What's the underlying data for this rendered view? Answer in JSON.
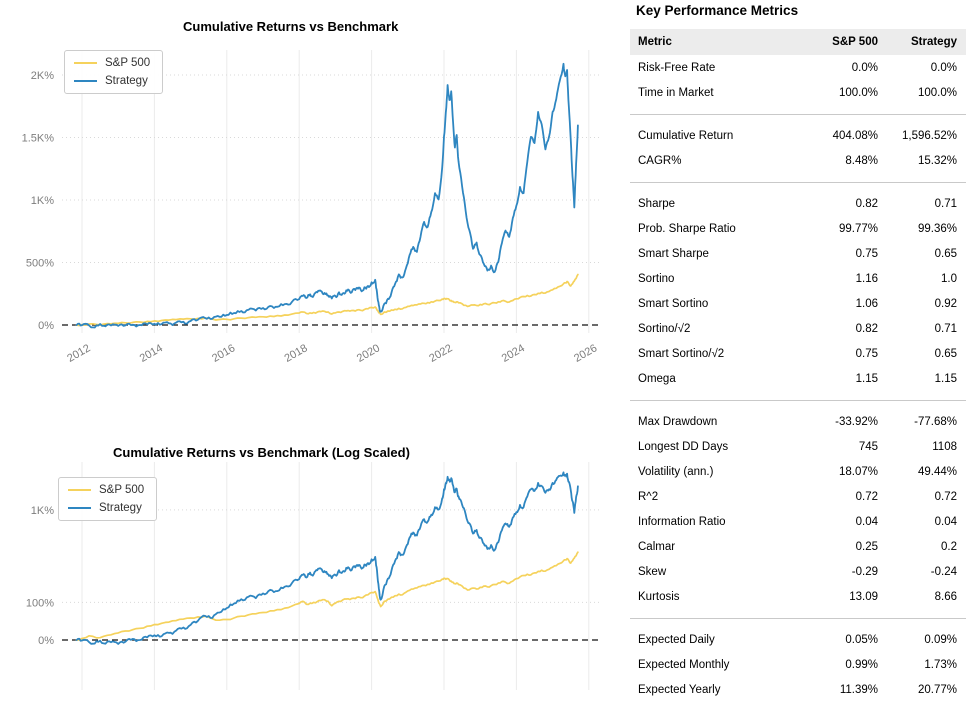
{
  "metrics_panel": {
    "title": "Key Performance Metrics",
    "columns": [
      "Metric",
      "S&P 500",
      "Strategy"
    ],
    "groups": [
      {
        "rows": [
          [
            "Risk-Free Rate",
            "0.0%",
            "0.0%"
          ],
          [
            "Time in Market",
            "100.0%",
            "100.0%"
          ]
        ]
      },
      {
        "rows": [
          [
            "Cumulative Return",
            "404.08%",
            "1,596.52%"
          ],
          [
            "CAGR%",
            "8.48%",
            "15.32%"
          ]
        ]
      },
      {
        "rows": [
          [
            "Sharpe",
            "0.82",
            "0.71"
          ],
          [
            "Prob. Sharpe Ratio",
            "99.77%",
            "99.36%"
          ],
          [
            "Smart Sharpe",
            "0.75",
            "0.65"
          ],
          [
            "Sortino",
            "1.16",
            "1.0"
          ],
          [
            "Smart Sortino",
            "1.06",
            "0.92"
          ],
          [
            "Sortino/√2",
            "0.82",
            "0.71"
          ],
          [
            "Smart Sortino/√2",
            "0.75",
            "0.65"
          ],
          [
            "Omega",
            "1.15",
            "1.15"
          ]
        ]
      },
      {
        "rows": [
          [
            "Max Drawdown",
            "-33.92%",
            "-77.68%"
          ],
          [
            "Longest DD Days",
            "745",
            "1108"
          ],
          [
            "Volatility (ann.)",
            "18.07%",
            "49.44%"
          ],
          [
            "R^2",
            "0.72",
            "0.72"
          ],
          [
            "Information Ratio",
            "0.04",
            "0.04"
          ],
          [
            "Calmar",
            "0.25",
            "0.2"
          ],
          [
            "Skew",
            "-0.29",
            "-0.24"
          ],
          [
            "Kurtosis",
            "13.09",
            "8.66"
          ]
        ]
      },
      {
        "rows": [
          [
            "Expected Daily",
            "0.05%",
            "0.09%"
          ],
          [
            "Expected Monthly",
            "0.99%",
            "1.73%"
          ],
          [
            "Expected Yearly",
            "11.39%",
            "20.77%"
          ]
        ]
      }
    ]
  },
  "chart_data": [
    {
      "type": "line",
      "title": "Cumulative Returns vs Benchmark",
      "scale": "linear",
      "xlabel": "",
      "ylabel": "",
      "x_ticks": [
        2012,
        2014,
        2016,
        2018,
        2020,
        2022,
        2024,
        2026
      ],
      "x_tick_labels": [
        "2012",
        "2014",
        "2016",
        "2018",
        "2020",
        "2022",
        "2024",
        "2026"
      ],
      "y_ticks": [
        {
          "value": 0,
          "label": "0%"
        },
        {
          "value": 500,
          "label": "500%"
        },
        {
          "value": 1000,
          "label": "1K%"
        },
        {
          "value": 1500,
          "label": "1.5K%"
        },
        {
          "value": 2000,
          "label": "2K%"
        }
      ],
      "zero_line_dashed": true,
      "legend_position": "upper-left",
      "grid": true,
      "x_range": [
        2011.4,
        2027.1
      ],
      "x": [
        2011.85,
        2012,
        2012.2,
        2012.4,
        2012.6,
        2012.8,
        2013,
        2013.2,
        2013.4,
        2013.6,
        2013.8,
        2014,
        2014.2,
        2014.4,
        2014.6,
        2014.8,
        2015,
        2015.2,
        2015.4,
        2015.6,
        2015.8,
        2016,
        2016.2,
        2016.4,
        2016.6,
        2016.8,
        2017,
        2017.2,
        2017.4,
        2017.6,
        2017.8,
        2018,
        2018.1,
        2018.2,
        2018.3,
        2018.4,
        2018.5,
        2018.6,
        2018.7,
        2018.8,
        2018.9,
        2019,
        2019.1,
        2019.2,
        2019.3,
        2019.4,
        2019.5,
        2019.6,
        2019.7,
        2019.8,
        2019.9,
        2020,
        2020.1,
        2020.15,
        2020.2,
        2020.25,
        2020.35,
        2020.45,
        2020.55,
        2020.65,
        2020.75,
        2020.85,
        2020.95,
        2021.05,
        2021.15,
        2021.25,
        2021.35,
        2021.45,
        2021.55,
        2021.65,
        2021.75,
        2021.85,
        2021.95,
        2022,
        2022.05,
        2022.1,
        2022.15,
        2022.2,
        2022.25,
        2022.3,
        2022.35,
        2022.4,
        2022.5,
        2022.6,
        2022.7,
        2022.8,
        2022.9,
        2023,
        2023.1,
        2023.2,
        2023.3,
        2023.4,
        2023.5,
        2023.6,
        2023.7,
        2023.8,
        2023.9,
        2024,
        2024.1,
        2024.2,
        2024.3,
        2024.4,
        2024.5,
        2024.6,
        2024.7,
        2024.8,
        2024.9,
        2025,
        2025.1,
        2025.2,
        2025.3,
        2025.35,
        2025.4,
        2025.45,
        2025.5,
        2025.55,
        2025.6,
        2025.65,
        2025.7
      ],
      "series": [
        {
          "name": "S&P 500",
          "color": "#f5d25c",
          "values": [
            0,
            3,
            8,
            4,
            7,
            10,
            14,
            18,
            21,
            24,
            29,
            33,
            36,
            39,
            43,
            47,
            50,
            53,
            55,
            48,
            44,
            46,
            50,
            55,
            59,
            62,
            66,
            71,
            75,
            80,
            87,
            96,
            104,
            93,
            97,
            100,
            103,
            107,
            110,
            104,
            88,
            97,
            104,
            109,
            113,
            111,
            116,
            120,
            118,
            124,
            130,
            140,
            144,
            120,
            98,
            85,
            104,
            112,
            120,
            126,
            133,
            130,
            141,
            150,
            156,
            161,
            168,
            174,
            179,
            186,
            191,
            196,
            207,
            212,
            206,
            210,
            202,
            196,
            190,
            182,
            186,
            178,
            170,
            158,
            152,
            160,
            156,
            164,
            170,
            166,
            172,
            178,
            186,
            194,
            190,
            184,
            196,
            210,
            220,
            228,
            236,
            232,
            244,
            254,
            262,
            256,
            268,
            282,
            294,
            310,
            330,
            338,
            348,
            330,
            312,
            330,
            352,
            372,
            404
          ]
        },
        {
          "name": "Strategy",
          "color": "#2e86c1",
          "values": [
            0,
            -1,
            -4,
            -2,
            -6,
            -4,
            -7,
            -3,
            2,
            0,
            5,
            9,
            7,
            14,
            19,
            26,
            32,
            42,
            56,
            50,
            66,
            80,
            96,
            112,
            122,
            116,
            136,
            152,
            146,
            167,
            186,
            207,
            232,
            216,
            246,
            236,
            262,
            272,
            256,
            236,
            212,
            232,
            262,
            252,
            278,
            266,
            288,
            298,
            282,
            302,
            312,
            342,
            362,
            260,
            160,
            110,
            170,
            210,
            260,
            330,
            405,
            380,
            455,
            560,
            625,
            585,
            705,
            825,
            785,
            905,
            1055,
            1005,
            1260,
            1510,
            1700,
            1920,
            1800,
            1870,
            1620,
            1420,
            1520,
            1310,
            1110,
            910,
            760,
            610,
            660,
            560,
            490,
            435,
            475,
            425,
            505,
            655,
            755,
            705,
            855,
            955,
            1105,
            1055,
            1305,
            1505,
            1455,
            1705,
            1605,
            1405,
            1505,
            1705,
            1805,
            1955,
            2090,
            1990,
            2040,
            1740,
            1490,
            1190,
            940,
            1290,
            1597
          ]
        }
      ]
    },
    {
      "type": "line",
      "title": "Cumulative Returns vs Benchmark (Log Scaled)",
      "scale": "log",
      "xlabel": "",
      "ylabel": "",
      "x_ticks": [
        2012,
        2014,
        2016,
        2018,
        2020,
        2022,
        2024,
        2026
      ],
      "x_tick_labels": [
        "2012",
        "2014",
        "2016",
        "2018",
        "2020",
        "2022",
        "2024",
        "2026"
      ],
      "y_ticks": [
        {
          "value": 0,
          "label": "0%"
        },
        {
          "value": 100,
          "label": "100%"
        },
        {
          "value": 1000,
          "label": "1K%"
        }
      ],
      "zero_line_dashed": true,
      "legend_position": "upper-left",
      "grid": true,
      "x_range": [
        2011.4,
        2027.1
      ],
      "series_from": 0,
      "note": "same two series as the linear chart, plotted on a log(1+r) axis"
    }
  ]
}
